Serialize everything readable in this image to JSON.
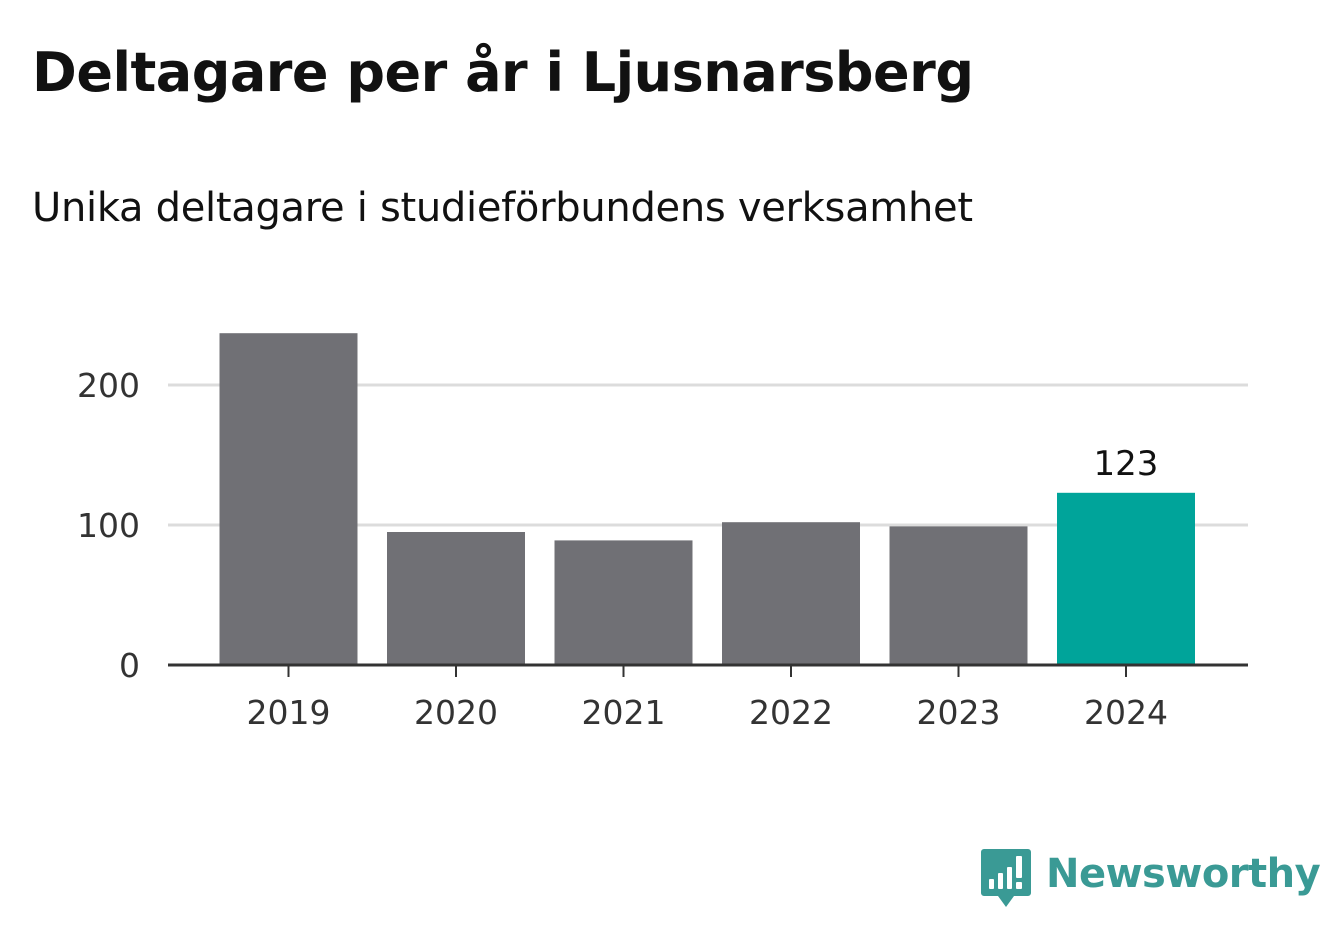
{
  "header": {
    "title": "Deltagare per år i Ljusnarsberg",
    "subtitle": "Unika deltagare i studieförbundens verksamhet"
  },
  "brand": {
    "name": "Newsworthy",
    "color": "#3a9a95",
    "icon": "newsworthy-logo-icon"
  },
  "colors": {
    "bar": "#707075",
    "highlight": "#00a49a",
    "grid": "#dcdcdc",
    "axis": "#333333",
    "tick_text": "#333333"
  },
  "chart_data": {
    "type": "bar",
    "categories": [
      "2019",
      "2020",
      "2021",
      "2022",
      "2023",
      "2024"
    ],
    "values": [
      237,
      95,
      89,
      102,
      99,
      123
    ],
    "highlight_index": 5,
    "data_labels": [
      {
        "index": 5,
        "text": "123"
      }
    ],
    "title": "Deltagare per år i Ljusnarsberg",
    "subtitle": "Unika deltagare i studieförbundens verksamhet",
    "xlabel": "",
    "ylabel": "",
    "ylim": [
      0,
      250
    ],
    "yticks": [
      0,
      100,
      200
    ],
    "grid": true,
    "legend": "none"
  }
}
